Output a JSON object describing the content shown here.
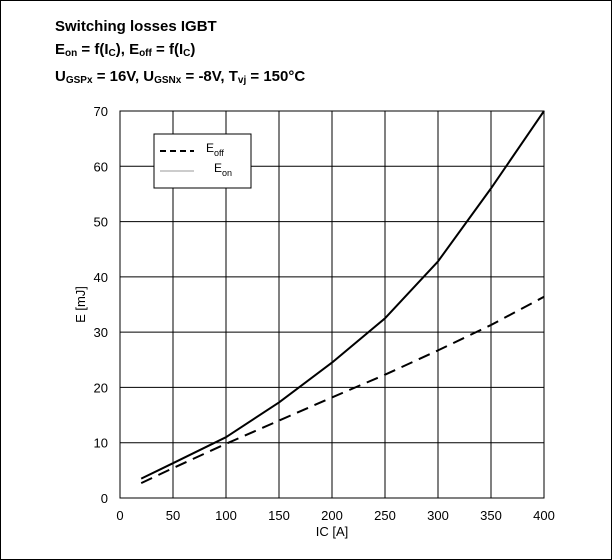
{
  "chart_data": {
    "type": "line",
    "title": {
      "line1": "Switching losses IGBT",
      "line2": {
        "a": "E",
        "a_sub": "on",
        "b": " = f(I",
        "b_sub": "C",
        "c": "), E",
        "c_sub": "off",
        "d": " = f(I",
        "d_sub": "C",
        "e": ")"
      },
      "line3": {
        "a": "U",
        "a_sub": "GSPx",
        "b": " = 16V, U",
        "b_sub": "GSNx",
        "c": " = -8V, T",
        "c_sub": "vj",
        "d": " = 150°C"
      }
    },
    "xlabel": "IC [A]",
    "ylabel": "E [mJ]",
    "xlim": [
      0,
      400
    ],
    "ylim": [
      0,
      70
    ],
    "xticks": [
      "0",
      "50",
      "100",
      "150",
      "200",
      "250",
      "300",
      "350",
      "400"
    ],
    "yticks": [
      "0",
      "10",
      "20",
      "30",
      "40",
      "50",
      "60",
      "70"
    ],
    "grid": true,
    "legend": {
      "placement": "top-left",
      "entries": [
        {
          "main": "E",
          "sub": "off",
          "style": "dashed"
        },
        {
          "main": "E",
          "sub": "on",
          "style": "solid"
        }
      ]
    },
    "series": [
      {
        "key": "eoff",
        "style": "dashed",
        "x": [
          20,
          50,
          100,
          150,
          200,
          250,
          300,
          350,
          400
        ],
        "y": [
          2.7,
          5.4,
          9.8,
          14.0,
          18.2,
          22.3,
          26.7,
          31.3,
          36.4
        ]
      },
      {
        "key": "eon",
        "style": "solid",
        "x": [
          20,
          50,
          100,
          150,
          200,
          250,
          300,
          350,
          400
        ],
        "y": [
          3.5,
          6.3,
          11.0,
          17.3,
          24.5,
          32.5,
          42.8,
          56.0,
          70.0
        ]
      }
    ]
  }
}
